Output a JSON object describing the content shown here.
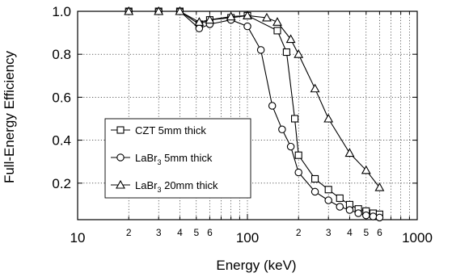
{
  "chart_data": {
    "type": "line",
    "xlabel": "Energy (keV)",
    "ylabel": "Full-Energy Efficiency",
    "x_scale": "log",
    "xlim": [
      10,
      1000
    ],
    "ylim": [
      0.03,
      1.0
    ],
    "x_major_ticks": [
      {
        "value": 10,
        "label": "10"
      },
      {
        "value": 100,
        "label": "100"
      },
      {
        "value": 1000,
        "label": "1000"
      }
    ],
    "x_minor_ticks": [
      {
        "value": 20,
        "label": "2"
      },
      {
        "value": 30,
        "label": "3"
      },
      {
        "value": 40,
        "label": "4"
      },
      {
        "value": 50,
        "label": "5"
      },
      {
        "value": 60,
        "label": "6"
      },
      {
        "value": 70,
        "label": ""
      },
      {
        "value": 80,
        "label": ""
      },
      {
        "value": 90,
        "label": ""
      },
      {
        "value": 200,
        "label": "2"
      },
      {
        "value": 300,
        "label": "3"
      },
      {
        "value": 400,
        "label": "4"
      },
      {
        "value": 500,
        "label": "5"
      },
      {
        "value": 600,
        "label": "6"
      },
      {
        "value": 700,
        "label": ""
      },
      {
        "value": 800,
        "label": ""
      },
      {
        "value": 900,
        "label": ""
      }
    ],
    "y_ticks": [
      {
        "value": 0.2,
        "label": "0.2"
      },
      {
        "value": 0.4,
        "label": "0.4"
      },
      {
        "value": 0.6,
        "label": "0.6"
      },
      {
        "value": 0.8,
        "label": "0.8"
      },
      {
        "value": 1.0,
        "label": "1.0"
      }
    ],
    "grid": true,
    "legend_position": "left-center",
    "series": [
      {
        "name": "CZT 5mm thick",
        "name_parts": [
          "CZT 5mm thick",
          "",
          ""
        ],
        "marker": "square",
        "x": [
          20,
          30,
          40,
          52,
          60,
          80,
          100,
          150,
          170,
          190,
          200,
          250,
          300,
          350,
          400,
          450,
          500,
          550,
          600
        ],
        "y": [
          1.0,
          1.0,
          1.0,
          0.94,
          0.96,
          0.97,
          0.98,
          0.91,
          0.81,
          0.5,
          0.33,
          0.22,
          0.17,
          0.13,
          0.1,
          0.08,
          0.07,
          0.06,
          0.055
        ]
      },
      {
        "name": "LaBr3 5mm thick",
        "name_parts": [
          "LaBr",
          "3",
          " 5mm thick"
        ],
        "marker": "circle",
        "x": [
          20,
          30,
          40,
          52,
          60,
          80,
          100,
          120,
          140,
          160,
          180,
          200,
          250,
          300,
          350,
          400,
          450,
          500,
          550,
          600
        ],
        "y": [
          1.0,
          1.0,
          1.0,
          0.92,
          0.94,
          0.96,
          0.93,
          0.82,
          0.56,
          0.45,
          0.37,
          0.25,
          0.16,
          0.12,
          0.09,
          0.075,
          0.06,
          0.05,
          0.045,
          0.04
        ]
      },
      {
        "name": "LaBr3 20mm thick",
        "name_parts": [
          "LaBr",
          "3",
          " 20mm thick"
        ],
        "marker": "triangle",
        "x": [
          20,
          30,
          40,
          52,
          60,
          80,
          100,
          130,
          150,
          180,
          200,
          250,
          300,
          400,
          500,
          600
        ],
        "y": [
          1.0,
          1.0,
          1.0,
          0.95,
          0.96,
          0.975,
          0.98,
          0.97,
          0.95,
          0.87,
          0.8,
          0.64,
          0.5,
          0.34,
          0.26,
          0.18
        ]
      }
    ]
  }
}
